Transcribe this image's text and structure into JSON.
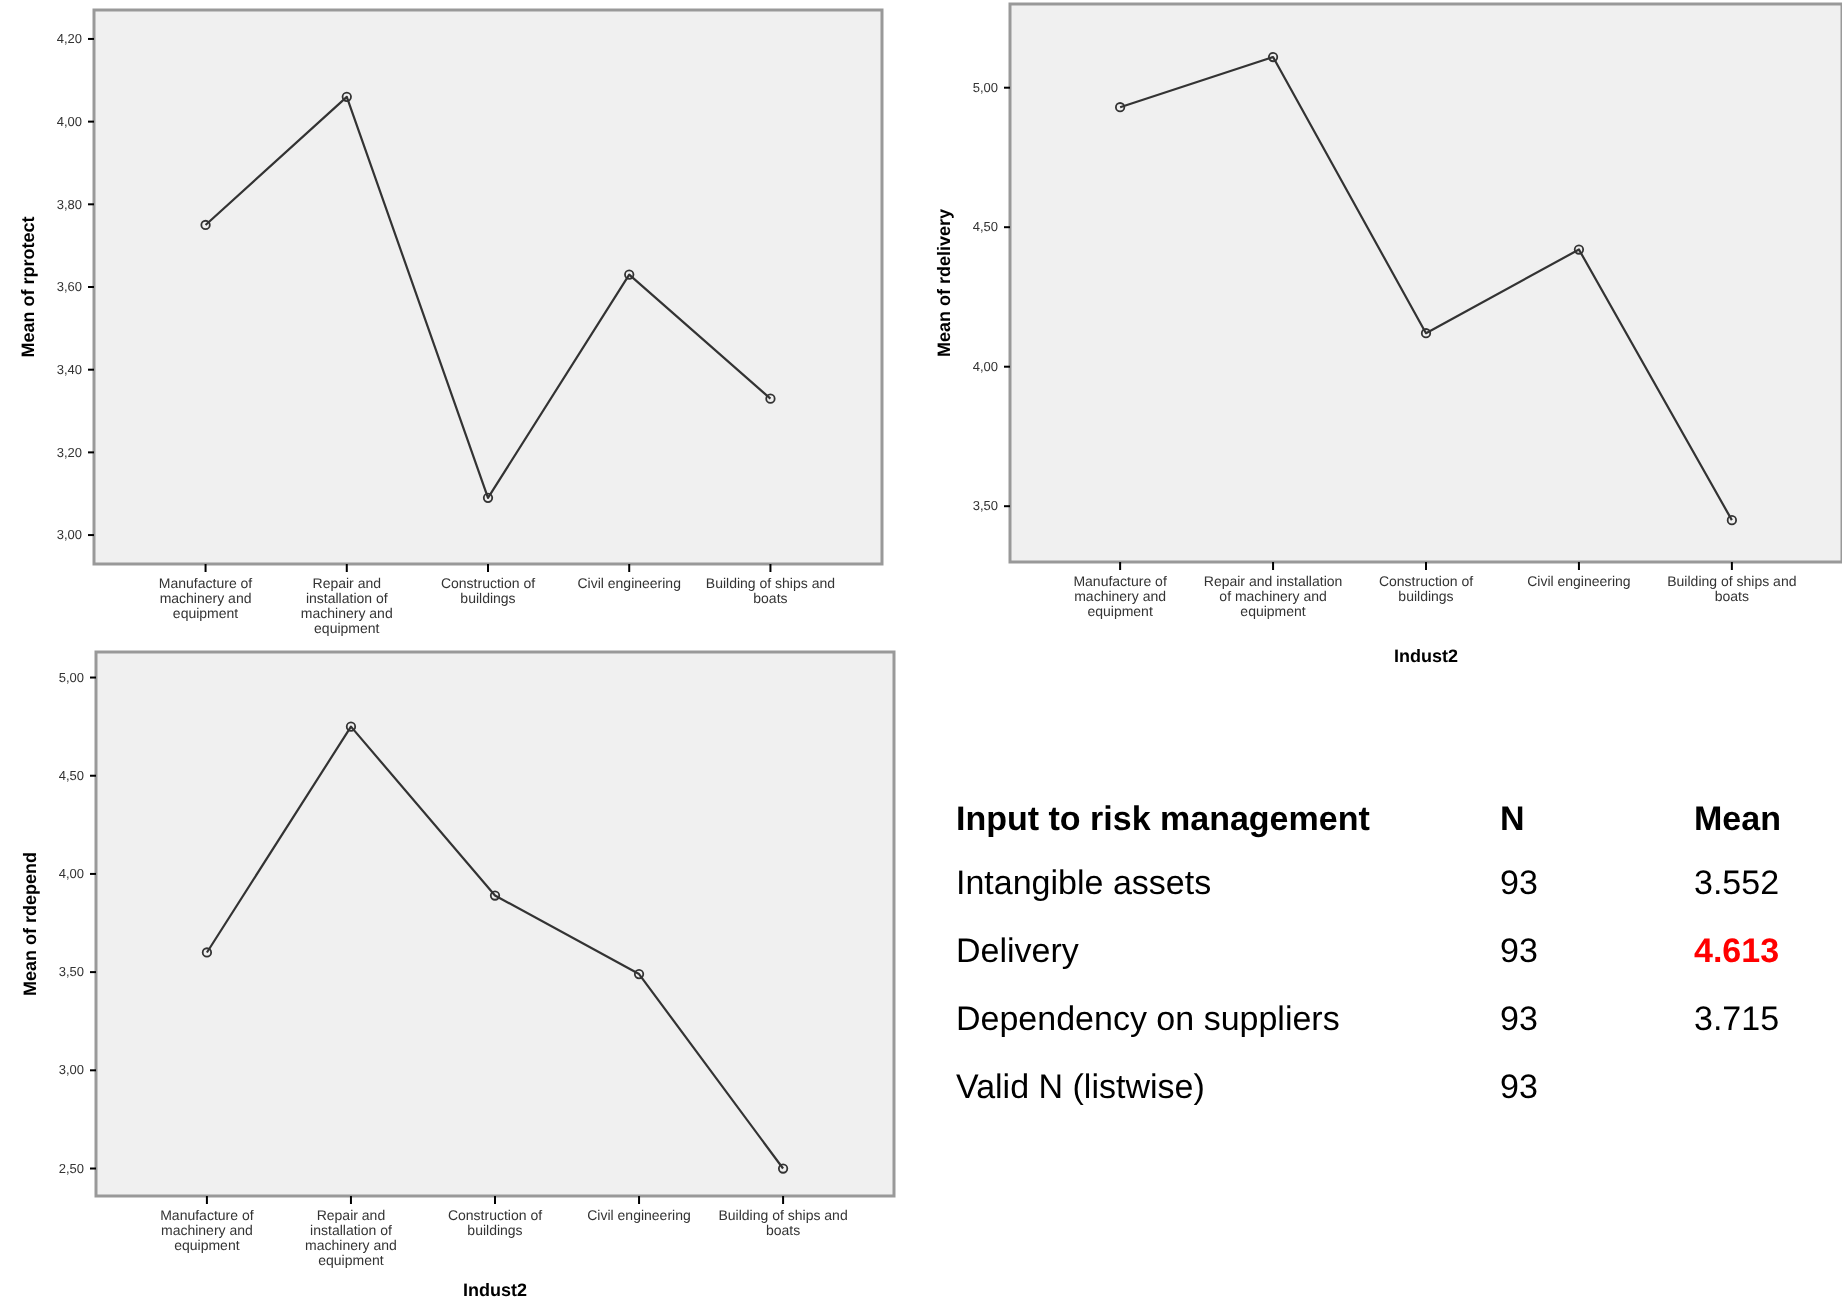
{
  "chart_data": [
    {
      "type": "line",
      "ylabel": "Mean of rprotect",
      "categories": [
        "Manufacture of machinery and equipment",
        "Repair and installation of machinery and equipment",
        "Construction of buildings",
        "Civil engineering",
        "Building of ships and boats"
      ],
      "series": [
        {
          "color": "#333333",
          "values": [
            3.75,
            4.06,
            3.09,
            3.63,
            3.33
          ]
        }
      ],
      "ylim": [
        2.93,
        4.27
      ],
      "yticks": [
        {
          "value": 3,
          "label": "3,00"
        },
        {
          "value": 3.2,
          "label": "3,20"
        },
        {
          "value": 3.4,
          "label": "3,40"
        },
        {
          "value": 3.6,
          "label": "3,60"
        },
        {
          "value": 3.8,
          "label": "3,80"
        },
        {
          "value": 4,
          "label": "4,00"
        },
        {
          "value": 4.2,
          "label": "4,20"
        }
      ],
      "marker": "circle"
    },
    {
      "type": "line",
      "xlabel": "Indust2",
      "ylabel": "Mean of rdelivery",
      "categories": [
        "Manufacture of machinery and equipment",
        "Repair and installation of machinery and equipment",
        "Construction of buildings",
        "Civil engineering",
        "Building of ships and boats"
      ],
      "series": [
        {
          "color": "#333333",
          "values": [
            4.93,
            5.11,
            4.12,
            4.42,
            3.45
          ]
        }
      ],
      "ylim": [
        3.3,
        5.3
      ],
      "yticks": [
        {
          "value": 3.5,
          "label": "3,50"
        },
        {
          "value": 4,
          "label": "4,00"
        },
        {
          "value": 4.5,
          "label": "4,50"
        },
        {
          "value": 5,
          "label": "5,00"
        }
      ],
      "marker": "circle"
    },
    {
      "type": "line",
      "xlabel": "Indust2",
      "ylabel": "Mean of rdepend",
      "categories": [
        "Manufacture of machinery and equipment",
        "Repair and installation of machinery and equipment",
        "Construction of buildings",
        "Civil engineering",
        "Building of ships and boats"
      ],
      "series": [
        {
          "color": "#333333",
          "values": [
            3.6,
            4.75,
            3.89,
            3.49,
            2.5
          ]
        }
      ],
      "ylim": [
        2.36,
        5.13
      ],
      "yticks": [
        {
          "value": 2.5,
          "label": "2,50"
        },
        {
          "value": 3,
          "label": "3,00"
        },
        {
          "value": 3.5,
          "label": "3,50"
        },
        {
          "value": 4,
          "label": "4,00"
        },
        {
          "value": 4.5,
          "label": "4,50"
        },
        {
          "value": 5,
          "label": "5,00"
        }
      ],
      "marker": "circle"
    },
    {
      "type": "other",
      "title": "Input to risk management",
      "categories": [
        "Intangible assets",
        "Delivery",
        "Dependency on suppliers",
        "Valid N (listwise)"
      ],
      "series": [
        {
          "name": "N",
          "color": "#000000",
          "values": [
            93,
            93,
            93,
            93
          ]
        },
        {
          "name": "Mean",
          "color": "#000000",
          "colors": [
            "#000000",
            "#ff0000",
            "#000000",
            null
          ],
          "values": [
            3.552,
            4.613,
            3.715,
            null
          ]
        }
      ],
      "data_labels": true
    }
  ]
}
